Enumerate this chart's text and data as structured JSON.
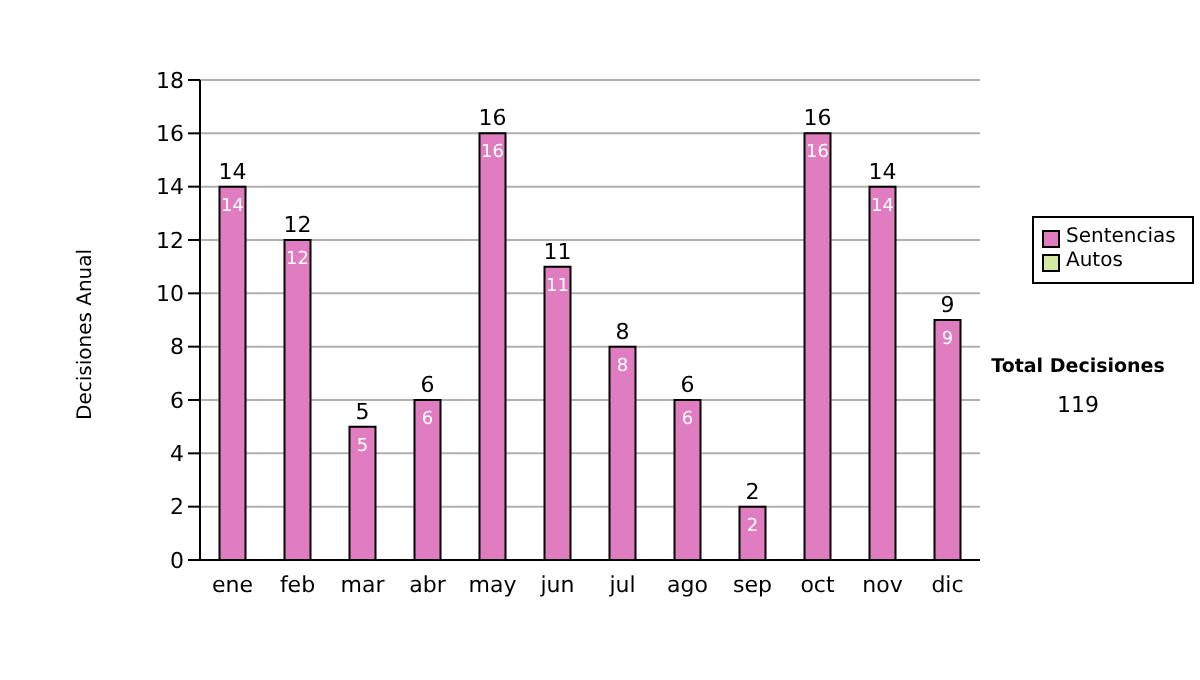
{
  "chart_data": {
    "type": "bar",
    "stacked": true,
    "ylabel": "Decisiones Anual",
    "categories": [
      "ene",
      "feb",
      "mar",
      "abr",
      "may",
      "jun",
      "jul",
      "ago",
      "sep",
      "oct",
      "nov",
      "dic"
    ],
    "series": [
      {
        "name": "Sentencias",
        "color": "#e07cc0",
        "values": [
          14,
          12,
          5,
          6,
          16,
          11,
          8,
          6,
          2,
          16,
          14,
          9
        ],
        "value_labels": [
          "14",
          "12",
          "5",
          "6",
          "16",
          "11",
          "8",
          "6",
          "2",
          "16",
          "14",
          "9"
        ]
      },
      {
        "name": "Autos",
        "color": "#d4e8a0",
        "values": [
          0,
          0,
          0,
          0,
          0,
          0,
          0,
          0,
          0,
          0,
          0,
          0
        ]
      }
    ],
    "totals": [
      "14",
      "12",
      "5",
      "6",
      "16",
      "11",
      "8",
      "6",
      "2",
      "16",
      "14",
      "9"
    ],
    "ylim": [
      0,
      18
    ],
    "yticks": [
      0,
      2,
      4,
      6,
      8,
      10,
      12,
      14,
      16,
      18
    ],
    "grid": "y",
    "legend": "right",
    "annotations": [
      "Total Decisiones",
      "119"
    ]
  }
}
